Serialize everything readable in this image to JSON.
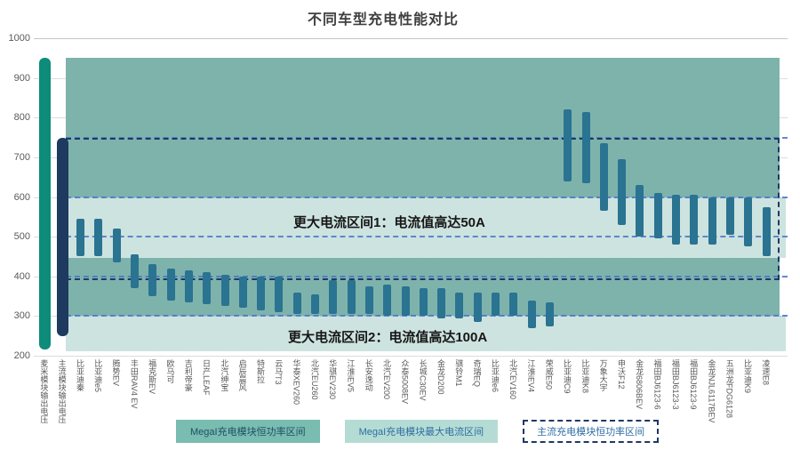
{
  "title": "不同车型充电性能对比",
  "chart_data": {
    "type": "bar",
    "subtype": "floating-range-columns",
    "title": "不同车型充电性能对比",
    "ylim": [
      200,
      1000
    ],
    "yticks": [
      1000,
      900,
      800,
      700,
      600,
      500,
      400,
      300,
      200
    ],
    "bars": [
      {
        "label": "麦米模块输出电压",
        "low": 215,
        "high": 950,
        "role": "mega-module"
      },
      {
        "label": "主流模块输出电压",
        "low": 250,
        "high": 750,
        "role": "mainstream-module"
      },
      {
        "label": "比亚迪秦",
        "low": 450,
        "high": 545,
        "role": "vehicle"
      },
      {
        "label": "比亚迪e5",
        "low": 450,
        "high": 545,
        "role": "vehicle"
      },
      {
        "label": "腾势EV",
        "low": 435,
        "high": 520,
        "role": "vehicle"
      },
      {
        "label": "丰田RAV4 EV",
        "low": 370,
        "high": 455,
        "role": "vehicle"
      },
      {
        "label": "福克斯EV",
        "low": 350,
        "high": 430,
        "role": "vehicle"
      },
      {
        "label": "欧马可",
        "low": 340,
        "high": 420,
        "role": "vehicle"
      },
      {
        "label": "吉利帝豪",
        "low": 335,
        "high": 415,
        "role": "vehicle"
      },
      {
        "label": "日产LEAF",
        "low": 330,
        "high": 410,
        "role": "vehicle"
      },
      {
        "label": "北汽绅宝",
        "low": 325,
        "high": 405,
        "role": "vehicle"
      },
      {
        "label": "启辰晨风",
        "low": 320,
        "high": 400,
        "role": "vehicle"
      },
      {
        "label": "特斯拉",
        "low": 315,
        "high": 400,
        "role": "vehicle"
      },
      {
        "label": "云马T3",
        "low": 310,
        "high": 400,
        "role": "vehicle"
      },
      {
        "label": "华泰XEV260",
        "low": 305,
        "high": 360,
        "role": "vehicle"
      },
      {
        "label": "北汽EU260",
        "low": 305,
        "high": 355,
        "role": "vehicle"
      },
      {
        "label": "华骐EV230",
        "low": 305,
        "high": 390,
        "role": "vehicle"
      },
      {
        "label": "江淮iEV5",
        "low": 305,
        "high": 390,
        "role": "vehicle"
      },
      {
        "label": "长安逸动",
        "low": 305,
        "high": 375,
        "role": "vehicle"
      },
      {
        "label": "北汽EV200",
        "low": 300,
        "high": 380,
        "role": "vehicle"
      },
      {
        "label": "众泰5008EV",
        "low": 300,
        "high": 375,
        "role": "vehicle"
      },
      {
        "label": "长城C30EV",
        "low": 300,
        "high": 370,
        "role": "vehicle"
      },
      {
        "label": "金龙D200",
        "low": 295,
        "high": 370,
        "role": "vehicle"
      },
      {
        "label": "骐铃M1",
        "low": 295,
        "high": 360,
        "role": "vehicle"
      },
      {
        "label": "奇瑞EQ",
        "low": 285,
        "high": 360,
        "role": "vehicle"
      },
      {
        "label": "比亚迪e6",
        "low": 300,
        "high": 360,
        "role": "vehicle"
      },
      {
        "label": "北汽EV160",
        "low": 300,
        "high": 360,
        "role": "vehicle"
      },
      {
        "label": "江淮iEV4",
        "low": 270,
        "high": 340,
        "role": "vehicle"
      },
      {
        "label": "荣威E50",
        "low": 275,
        "high": 335,
        "role": "vehicle"
      },
      {
        "label": "比亚迪C9",
        "low": 640,
        "high": 820,
        "role": "vehicle"
      },
      {
        "label": "比亚迪K8",
        "low": 635,
        "high": 815,
        "role": "vehicle"
      },
      {
        "label": "万象大宇",
        "low": 565,
        "high": 735,
        "role": "vehicle"
      },
      {
        "label": "申沃F12",
        "low": 530,
        "high": 695,
        "role": "vehicle"
      },
      {
        "label": "金龙6806BEV",
        "low": 500,
        "high": 630,
        "role": "vehicle"
      },
      {
        "label": "福田BJ6123-6",
        "low": 495,
        "high": 610,
        "role": "vehicle"
      },
      {
        "label": "福田BJ6123-3",
        "low": 480,
        "high": 605,
        "role": "vehicle"
      },
      {
        "label": "福田BJ6123-9",
        "low": 480,
        "high": 605,
        "role": "vehicle"
      },
      {
        "label": "金龙NJL6117BEV",
        "low": 480,
        "high": 600,
        "role": "vehicle"
      },
      {
        "label": "五洲龙FDG6128",
        "low": 505,
        "high": 600,
        "role": "vehicle"
      },
      {
        "label": "比亚迪K9",
        "low": 475,
        "high": 600,
        "role": "vehicle"
      },
      {
        "label": "凌速E8",
        "low": 450,
        "high": 575,
        "role": "vehicle"
      }
    ],
    "regions": {
      "mega_power_range": [
        215,
        950
      ],
      "mega_max_current_ranges": [
        [
          450,
          600
        ],
        [
          215,
          300
        ]
      ],
      "mainstream_power_range": [
        400,
        750
      ],
      "guide_values": [
        750,
        600,
        500,
        400,
        300
      ]
    },
    "annotations": [
      {
        "text": "更大电流区间1：电流值高达50A"
      },
      {
        "text": "更大电流区间2：电流值高达100A"
      }
    ],
    "legend": [
      {
        "label": "MegaI充电模块恒功率区间"
      },
      {
        "label": "MegaI充电模块最大电流区间"
      },
      {
        "label": "主流充电模块恒功率区间"
      }
    ],
    "colors": {
      "mega_module_bar": "#0d8c7a",
      "mainstream_module_bar": "#1e3a5e",
      "vehicle_bar": "#2a7391",
      "power_band": "#7eb3ac",
      "current_band": "#cde3df",
      "guide_line": "#4a77c9",
      "mainstream_rect": "#1f3864",
      "legend_fill_dark": "#79bcb0",
      "legend_fill_light": "#b5dcd4"
    }
  }
}
